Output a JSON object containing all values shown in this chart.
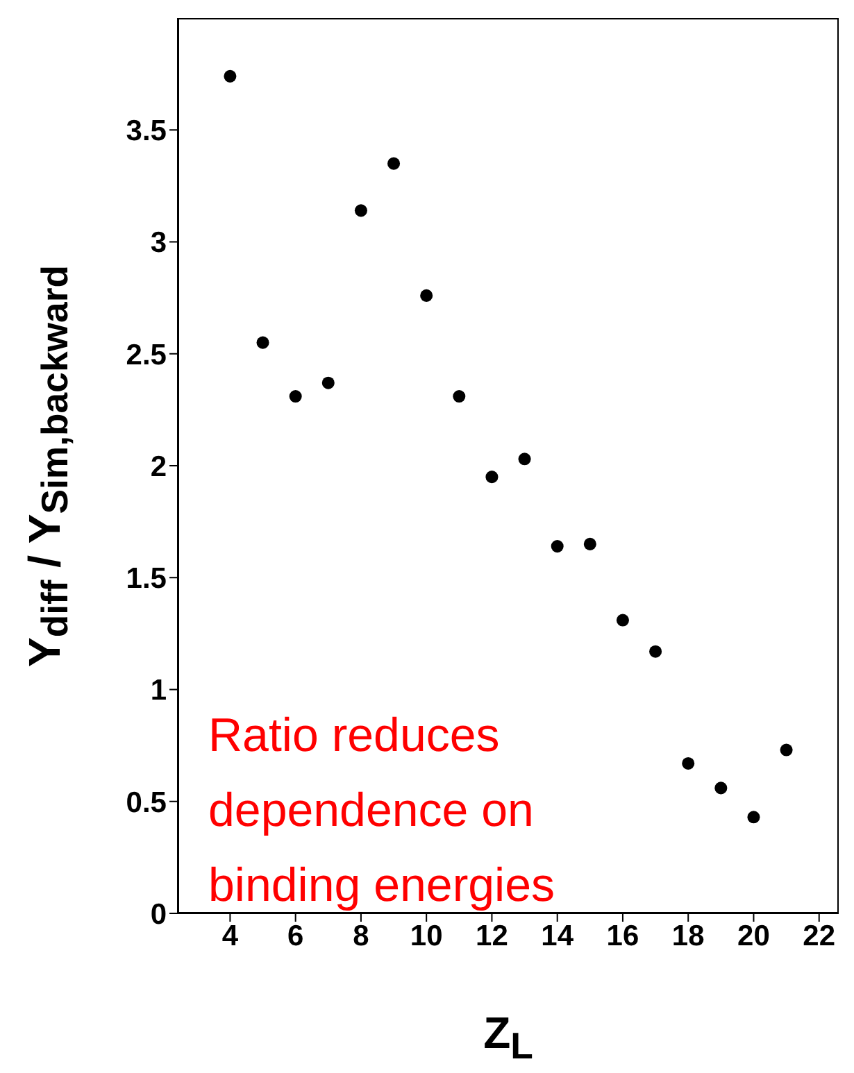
{
  "chart_data": {
    "type": "scatter",
    "xlabel": "Z$_{L}$",
    "ylabel": "Y$_{diff}$ / Y$_{Sim,backward}$",
    "annotations": [
      "Ratio reduces dependence on binding energies"
    ],
    "x": [
      4,
      5,
      6,
      7,
      8,
      9,
      10,
      11,
      12,
      13,
      14,
      15,
      16,
      17,
      18,
      19,
      20,
      21
    ],
    "series": [
      {
        "color": "#000000",
        "values": [
          3.74,
          2.55,
          2.31,
          2.37,
          3.14,
          3.35,
          2.76,
          2.31,
          1.95,
          2.03,
          1.64,
          1.65,
          1.31,
          1.17,
          0.67,
          0.56,
          0.43,
          0.73
        ]
      }
    ],
    "xlim": [
      2.4,
      22.6
    ],
    "xticks": [
      4,
      6,
      8,
      10,
      12,
      14,
      16,
      18,
      20,
      22
    ],
    "ylim": [
      0,
      4
    ],
    "yticks": [
      0,
      0.5,
      1,
      1.5,
      2,
      2.5,
      3,
      3.5
    ],
    "marker": "circle",
    "grid": false
  }
}
